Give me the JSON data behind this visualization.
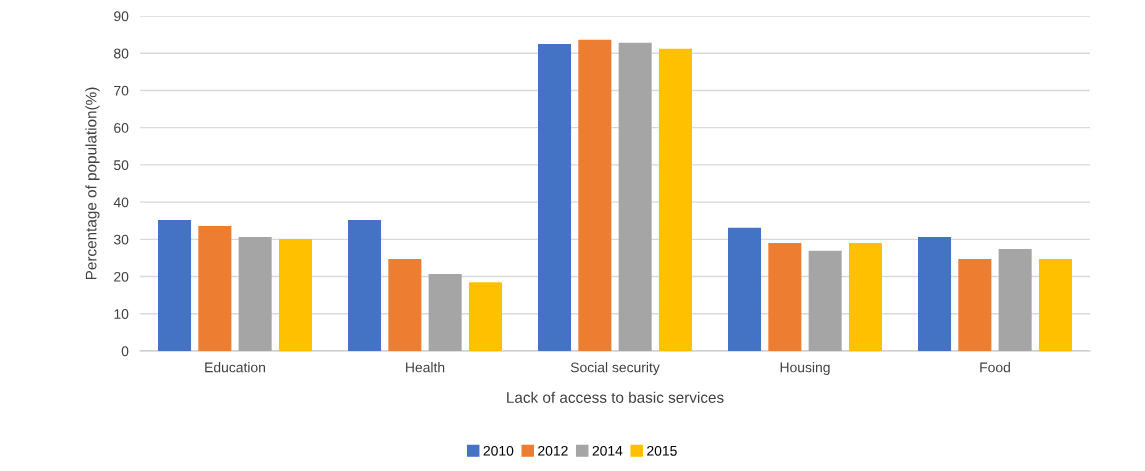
{
  "chart_data": {
    "type": "bar",
    "xlabel": "Lack of access to basic services",
    "ylabel": "Percentage of population(%)",
    "categories": [
      "Education",
      "Health",
      "Social security",
      "Housing",
      "Food"
    ],
    "series": [
      {
        "name": "2010",
        "color": "#4472c4",
        "values": [
          35.2,
          35.2,
          82.5,
          33.1,
          30.6
        ]
      },
      {
        "name": "2012",
        "color": "#ed7d31",
        "values": [
          33.6,
          24.7,
          83.6,
          29.0,
          24.7
        ]
      },
      {
        "name": "2014",
        "color": "#a5a5a5",
        "values": [
          30.6,
          20.7,
          82.8,
          26.9,
          27.4
        ]
      },
      {
        "name": "2015",
        "color": "#ffc000",
        "values": [
          30.1,
          18.5,
          81.2,
          29.0,
          24.7
        ]
      }
    ],
    "ylim": [
      0,
      90
    ],
    "yticks": [
      0,
      10,
      20,
      30,
      40,
      50,
      60,
      70,
      80,
      90
    ],
    "grid": "y",
    "legend": "bottom"
  }
}
